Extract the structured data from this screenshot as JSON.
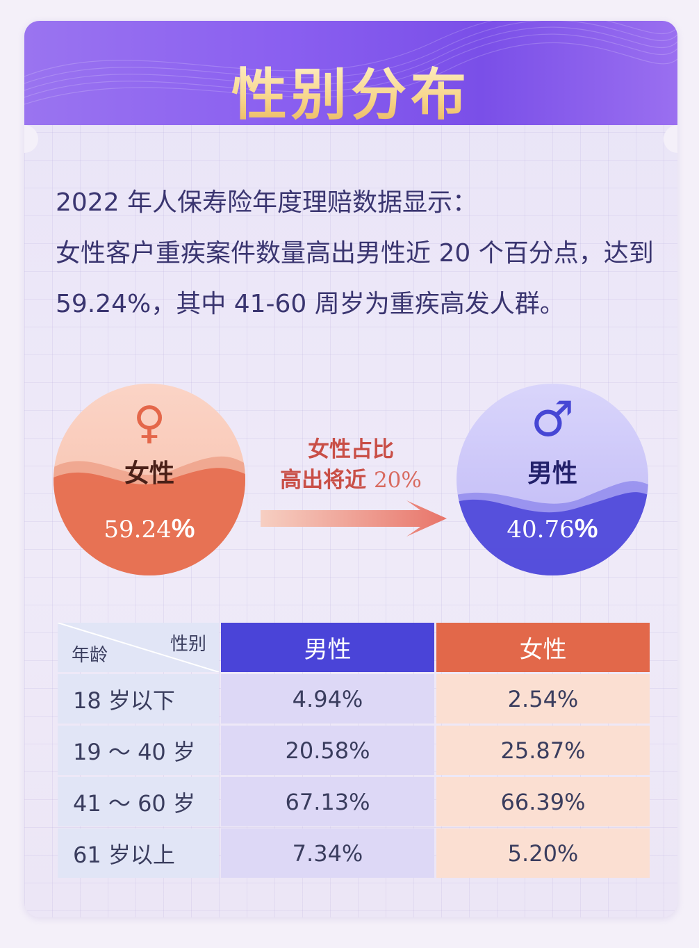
{
  "title": "性别分布",
  "intro": {
    "line1": "2022 年人保寿险年度理赔数据显示：",
    "line2": "女性客户重疾案件数量高出男性近 20 个百分点，达到 59.24%，其中 41-60 周岁为重疾高发人群。"
  },
  "female": {
    "label": "女性",
    "value": "59.24",
    "unit": "%",
    "icon": "female-symbol-icon",
    "color": "#e2684a"
  },
  "male": {
    "label": "男性",
    "value": "40.76",
    "unit": "%",
    "icon": "male-symbol-icon",
    "color": "#4a44d8"
  },
  "comparison": {
    "line1": "女性占比",
    "line2": "高出将近",
    "value": "20%"
  },
  "table": {
    "corner_row": "年龄",
    "corner_col": "性别",
    "headers": [
      "男性",
      "女性"
    ],
    "rows": [
      {
        "age": "18 岁以下",
        "male": "4.94%",
        "female": "2.54%"
      },
      {
        "age": "19 ～ 40 岁",
        "male": "20.58%",
        "female": "25.87%"
      },
      {
        "age": "41 ～ 60 岁",
        "male": "67.13%",
        "female": "66.39%"
      },
      {
        "age": "61 岁以上",
        "male": "7.34%",
        "female": "5.20%"
      }
    ]
  }
}
